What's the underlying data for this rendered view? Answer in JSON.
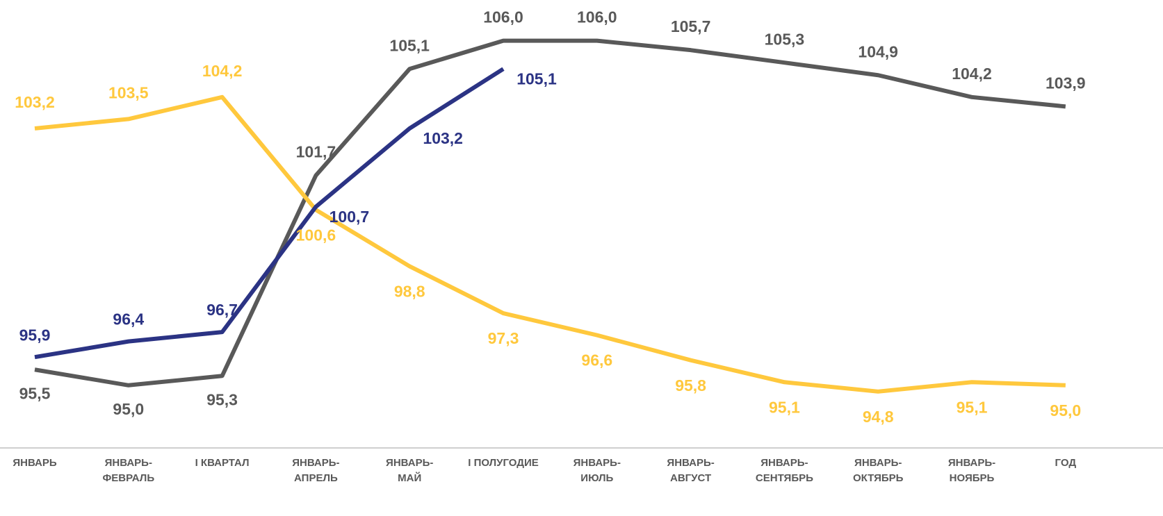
{
  "chart_data": {
    "type": "line",
    "categories": [
      "ЯНВАРЬ",
      "ЯНВАРЬ-\nФЕВРАЛЬ",
      "I КВАРТАЛ",
      "ЯНВАРЬ-\nАПРЕЛЬ",
      "ЯНВАРЬ-\nМАЙ",
      "I ПОЛУГОДИЕ",
      "ЯНВАРЬ-\nИЮЛЬ",
      "ЯНВАРЬ-\nАВГУСТ",
      "ЯНВАРЬ-\nСЕНТЯБРЬ",
      "ЯНВАРЬ-\nОКТЯБРЬ",
      "ЯНВАРЬ-\nНОЯБРЬ",
      "ГОД"
    ],
    "series": [
      {
        "color": "#595959",
        "values": [
          95.5,
          95.0,
          95.3,
          101.7,
          105.1,
          106.0,
          106.0,
          105.7,
          105.3,
          104.9,
          104.2,
          103.9
        ],
        "value_labels": [
          "95,5",
          "95,0",
          "95,3",
          "101,7",
          "105,1",
          "106,0",
          "106,0",
          "105,7",
          "105,3",
          "104,9",
          "104,2",
          "103,9"
        ]
      },
      {
        "color": "#ffc83d",
        "values": [
          103.2,
          103.5,
          104.2,
          100.6,
          98.8,
          97.3,
          96.6,
          95.8,
          95.1,
          94.8,
          95.1,
          95.0
        ],
        "value_labels": [
          "103,2",
          "103,5",
          "104,2",
          "100,6",
          "98,8",
          "97,3",
          "96,6",
          "95,8",
          "95,1",
          "94,8",
          "95,1",
          "95,0"
        ]
      },
      {
        "color": "#2b3384",
        "values": [
          95.9,
          96.4,
          96.7,
          100.7,
          103.2,
          105.1,
          null,
          null,
          null,
          null,
          null,
          null
        ],
        "value_labels": [
          "95,9",
          "96,4",
          "96,7",
          "100,7",
          "103,2",
          "105,1",
          null,
          null,
          null,
          null,
          null,
          null
        ]
      }
    ],
    "ylim": [
      93.0,
      107.3
    ]
  }
}
